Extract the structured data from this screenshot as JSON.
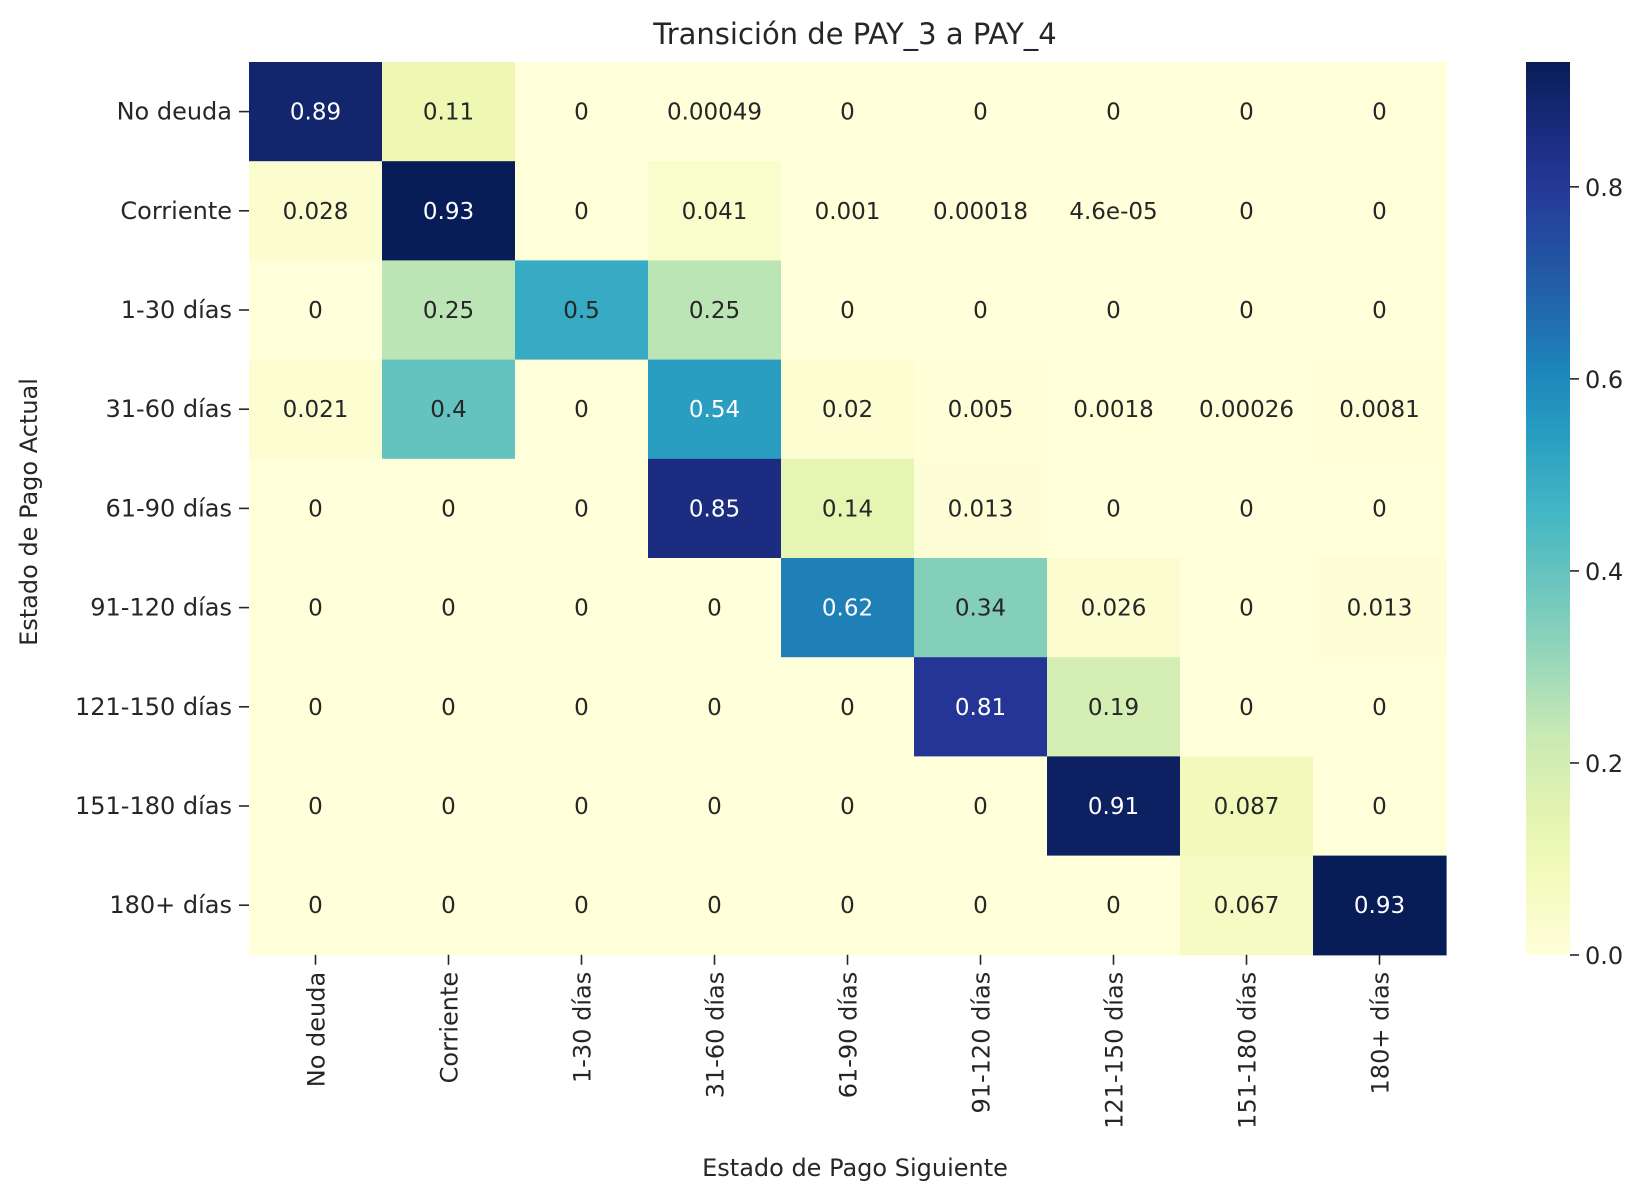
{
  "chart_data": {
    "type": "heatmap",
    "title": "Transición de PAY_3 a PAY_4",
    "xlabel": "Estado de Pago Siguiente",
    "ylabel": "Estado de Pago Actual",
    "x_categories": [
      "No deuda",
      "Corriente",
      "1-30 días",
      "31-60 días",
      "61-90 días",
      "91-120 días",
      "121-150 días",
      "151-180 días",
      "180+ días"
    ],
    "y_categories": [
      "No deuda",
      "Corriente",
      "1-30 días",
      "31-60 días",
      "61-90 días",
      "91-120 días",
      "121-150 días",
      "151-180 días",
      "180+ días"
    ],
    "values": [
      [
        0.89,
        0.11,
        0,
        0.00049,
        0,
        0,
        0,
        0,
        0
      ],
      [
        0.028,
        0.93,
        0,
        0.041,
        0.001,
        0.00018,
        4.6e-05,
        0,
        0
      ],
      [
        0,
        0.25,
        0.5,
        0.25,
        0,
        0,
        0,
        0,
        0
      ],
      [
        0.021,
        0.4,
        0,
        0.54,
        0.02,
        0.005,
        0.0018,
        0.00026,
        0.0081
      ],
      [
        0,
        0,
        0,
        0.85,
        0.14,
        0.013,
        0,
        0,
        0
      ],
      [
        0,
        0,
        0,
        0,
        0.62,
        0.34,
        0.026,
        0,
        0.013
      ],
      [
        0,
        0,
        0,
        0,
        0,
        0.81,
        0.19,
        0,
        0
      ],
      [
        0,
        0,
        0,
        0,
        0,
        0,
        0.91,
        0.087,
        0
      ],
      [
        0,
        0,
        0,
        0,
        0,
        0,
        0,
        0.067,
        0.93
      ]
    ],
    "annotations": [
      [
        "0.89",
        "0.11",
        "0",
        "0.00049",
        "0",
        "0",
        "0",
        "0",
        "0"
      ],
      [
        "0.028",
        "0.93",
        "0",
        "0.041",
        "0.001",
        "0.00018",
        "4.6e-05",
        "0",
        "0"
      ],
      [
        "0",
        "0.25",
        "0.5",
        "0.25",
        "0",
        "0",
        "0",
        "0",
        "0"
      ],
      [
        "0.021",
        "0.4",
        "0",
        "0.54",
        "0.02",
        "0.005",
        "0.0018",
        "0.00026",
        "0.0081"
      ],
      [
        "0",
        "0",
        "0",
        "0.85",
        "0.14",
        "0.013",
        "0",
        "0",
        "0"
      ],
      [
        "0",
        "0",
        "0",
        "0",
        "0.62",
        "0.34",
        "0.026",
        "0",
        "0.013"
      ],
      [
        "0",
        "0",
        "0",
        "0",
        "0",
        "0.81",
        "0.19",
        "0",
        "0"
      ],
      [
        "0",
        "0",
        "0",
        "0",
        "0",
        "0",
        "0.91",
        "0.087",
        "0"
      ],
      [
        "0",
        "0",
        "0",
        "0",
        "0",
        "0",
        "0",
        "0.067",
        "0.93"
      ]
    ],
    "colormap": "YlGnBu",
    "color_range": [
      0,
      0.93
    ],
    "colorbar_ticks": [
      "0.0",
      "0.2",
      "0.4",
      "0.6",
      "0.8"
    ],
    "colorbar_tick_values": [
      0,
      0.2,
      0.4,
      0.6,
      0.8
    ]
  }
}
